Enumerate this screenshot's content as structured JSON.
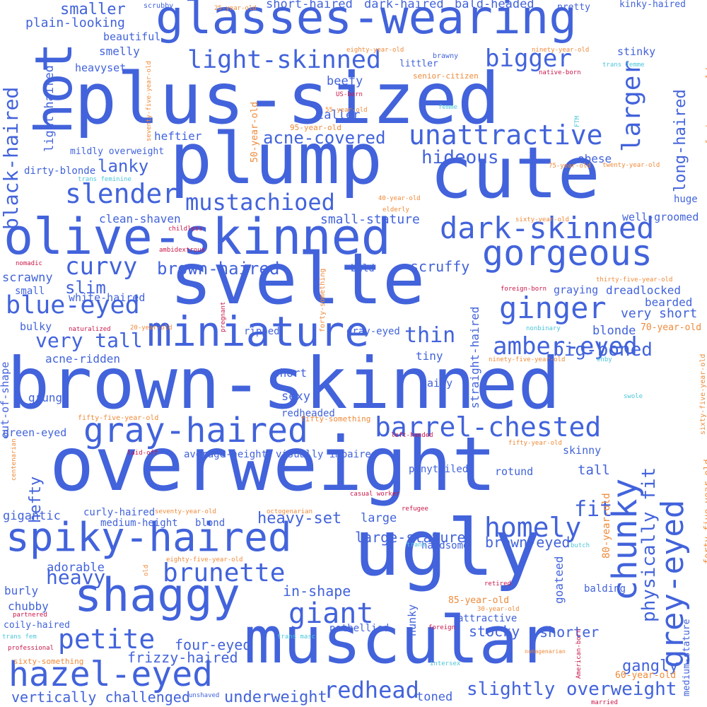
{
  "colors": {
    "blue": "#4263db",
    "orange": "#ef8a3a",
    "cyan": "#4cc6d8",
    "red": "#c9184a",
    "background": "#ffffff"
  },
  "words": [
    {
      "text": "brown-skinned",
      "color": "blue"
    },
    {
      "text": "overweight",
      "color": "blue"
    },
    {
      "text": "muscular",
      "color": "blue"
    },
    {
      "text": "plus-sized",
      "color": "blue"
    },
    {
      "text": "svelte",
      "color": "blue"
    },
    {
      "text": "plump",
      "color": "blue"
    },
    {
      "text": "ugly",
      "color": "blue"
    },
    {
      "text": "glasses-wearing",
      "color": "blue"
    },
    {
      "text": "cute",
      "color": "blue"
    },
    {
      "text": "olive-skinned",
      "color": "blue"
    },
    {
      "text": "hot",
      "color": "blue"
    },
    {
      "text": "spiky-haired",
      "color": "blue"
    },
    {
      "text": "shaggy",
      "color": "blue"
    },
    {
      "text": "miniature",
      "color": "blue"
    },
    {
      "text": "gray-haired",
      "color": "blue"
    },
    {
      "text": "hazel-eyed",
      "color": "blue"
    },
    {
      "text": "gorgeous",
      "color": "blue"
    },
    {
      "text": "dark-skinned",
      "color": "blue"
    },
    {
      "text": "chunky",
      "color": "blue"
    },
    {
      "text": "grey-eyed",
      "color": "blue"
    },
    {
      "text": "barrel-chested",
      "color": "blue"
    },
    {
      "text": "unattractive",
      "color": "blue"
    },
    {
      "text": "light-skinned",
      "color": "blue"
    },
    {
      "text": "ginger",
      "color": "blue"
    },
    {
      "text": "slender",
      "color": "blue"
    },
    {
      "text": "mustachioed",
      "color": "blue"
    },
    {
      "text": "homely",
      "color": "blue"
    },
    {
      "text": "brunette",
      "color": "blue"
    },
    {
      "text": "giant",
      "color": "blue"
    },
    {
      "text": "petite",
      "color": "blue"
    },
    {
      "text": "larger",
      "color": "blue"
    },
    {
      "text": "amber-eyed",
      "color": "blue"
    },
    {
      "text": "blue-eyed",
      "color": "blue"
    },
    {
      "text": "black-haired",
      "color": "blue"
    },
    {
      "text": "bigger",
      "color": "blue"
    },
    {
      "text": "curvy",
      "color": "blue"
    },
    {
      "text": "slightly overweight",
      "color": "blue"
    },
    {
      "text": "physically fit",
      "color": "blue"
    },
    {
      "text": "redhead",
      "color": "blue"
    },
    {
      "text": "fit",
      "color": "blue"
    },
    {
      "text": "brown-haired",
      "color": "blue"
    },
    {
      "text": "acne-covered",
      "color": "blue"
    },
    {
      "text": "hideous",
      "color": "blue"
    },
    {
      "text": "very tall",
      "color": "blue"
    },
    {
      "text": "big-boned",
      "color": "blue"
    },
    {
      "text": "long-haired",
      "color": "blue"
    },
    {
      "text": "lanky",
      "color": "blue"
    },
    {
      "text": "slim",
      "color": "blue"
    },
    {
      "text": "heavy",
      "color": "blue"
    },
    {
      "text": "hefty",
      "color": "blue"
    },
    {
      "text": "scruffy",
      "color": "blue"
    },
    {
      "text": "thin",
      "color": "blue"
    },
    {
      "text": "gangly",
      "color": "blue"
    },
    {
      "text": "heavy-set",
      "color": "blue"
    },
    {
      "text": "large-stature",
      "color": "blue"
    },
    {
      "text": "brown-eyed",
      "color": "blue"
    },
    {
      "text": "underweight",
      "color": "blue"
    },
    {
      "text": "vertically challenged",
      "color": "blue"
    },
    {
      "text": "frizzy-haired",
      "color": "blue"
    },
    {
      "text": "four-eyed",
      "color": "blue"
    },
    {
      "text": "stocky",
      "color": "blue"
    },
    {
      "text": "shorter",
      "color": "blue"
    },
    {
      "text": "in-shape",
      "color": "blue"
    },
    {
      "text": "smaller",
      "color": "blue"
    },
    {
      "text": "short-haired",
      "color": "blue"
    },
    {
      "text": "dark-haired",
      "color": "blue"
    },
    {
      "text": "bald-headed",
      "color": "blue"
    },
    {
      "text": "light-haired",
      "color": "blue"
    },
    {
      "text": "plain-looking",
      "color": "blue"
    },
    {
      "text": "beautiful",
      "color": "blue"
    },
    {
      "text": "smelly",
      "color": "blue"
    },
    {
      "text": "heavyset",
      "color": "blue"
    },
    {
      "text": "beefy",
      "color": "blue"
    },
    {
      "text": "taller",
      "color": "blue"
    },
    {
      "text": "heftier",
      "color": "blue"
    },
    {
      "text": "mildly overweight",
      "color": "blue"
    },
    {
      "text": "dirty-blonde",
      "color": "blue"
    },
    {
      "text": "obese",
      "color": "blue"
    },
    {
      "text": "stinky",
      "color": "blue"
    },
    {
      "text": "well-groomed",
      "color": "blue"
    },
    {
      "text": "huge",
      "color": "blue"
    },
    {
      "text": "clean-shaven",
      "color": "blue"
    },
    {
      "text": "small-stature",
      "color": "blue"
    },
    {
      "text": "bald",
      "color": "blue"
    },
    {
      "text": "graying",
      "color": "blue"
    },
    {
      "text": "dreadlocked",
      "color": "blue"
    },
    {
      "text": "bearded",
      "color": "blue"
    },
    {
      "text": "very short",
      "color": "blue"
    },
    {
      "text": "blonde",
      "color": "blue"
    },
    {
      "text": "scrawny",
      "color": "blue"
    },
    {
      "text": "small",
      "color": "blue"
    },
    {
      "text": "white-haired",
      "color": "blue"
    },
    {
      "text": "bulky",
      "color": "blue"
    },
    {
      "text": "ripped",
      "color": "blue"
    },
    {
      "text": "gray-eyed",
      "color": "blue"
    },
    {
      "text": "tiny",
      "color": "blue"
    },
    {
      "text": "acne-ridden",
      "color": "blue"
    },
    {
      "text": "short",
      "color": "blue"
    },
    {
      "text": "hairy",
      "color": "blue"
    },
    {
      "text": "sexy",
      "color": "blue"
    },
    {
      "text": "redheaded",
      "color": "blue"
    },
    {
      "text": "grungy",
      "color": "blue"
    },
    {
      "text": "green-eyed",
      "color": "blue"
    },
    {
      "text": "out-of-shape",
      "color": "blue"
    },
    {
      "text": "straight-haired",
      "color": "blue"
    },
    {
      "text": "average-height",
      "color": "blue"
    },
    {
      "text": "visually impaired",
      "color": "blue"
    },
    {
      "text": "ponytailed",
      "color": "blue"
    },
    {
      "text": "rotund",
      "color": "blue"
    },
    {
      "text": "skinny",
      "color": "blue"
    },
    {
      "text": "tall",
      "color": "blue"
    },
    {
      "text": "large",
      "color": "blue"
    },
    {
      "text": "gigantic",
      "color": "blue"
    },
    {
      "text": "curly-haired",
      "color": "blue"
    },
    {
      "text": "medium-height",
      "color": "blue"
    },
    {
      "text": "blond",
      "color": "blue"
    },
    {
      "text": "handsome",
      "color": "blue"
    },
    {
      "text": "adorable",
      "color": "blue"
    },
    {
      "text": "goateed",
      "color": "blue"
    },
    {
      "text": "balding",
      "color": "blue"
    },
    {
      "text": "burly",
      "color": "blue"
    },
    {
      "text": "chubby",
      "color": "blue"
    },
    {
      "text": "hunky",
      "color": "blue"
    },
    {
      "text": "attractive",
      "color": "blue"
    },
    {
      "text": "potbellied",
      "color": "blue"
    },
    {
      "text": "coily-haired",
      "color": "blue"
    },
    {
      "text": "toned",
      "color": "blue"
    },
    {
      "text": "medium-stature",
      "color": "blue"
    },
    {
      "text": "pretty",
      "color": "blue"
    },
    {
      "text": "kinky-haired",
      "color": "blue"
    },
    {
      "text": "brawny",
      "color": "blue"
    },
    {
      "text": "littler",
      "color": "blue"
    },
    {
      "text": "scrubby",
      "color": "blue"
    },
    {
      "text": "25-year-old",
      "color": "orange"
    },
    {
      "text": "eighty-year-old",
      "color": "orange"
    },
    {
      "text": "ninety-year-old",
      "color": "orange"
    },
    {
      "text": "senior-citizen",
      "color": "orange"
    },
    {
      "text": "55-year-old",
      "color": "orange"
    },
    {
      "text": "95-year-old",
      "color": "orange"
    },
    {
      "text": "50-year-old",
      "color": "orange"
    },
    {
      "text": "seventy-five-year-old",
      "color": "orange"
    },
    {
      "text": "forty-year-old",
      "color": "orange"
    },
    {
      "text": "75-year-old",
      "color": "orange"
    },
    {
      "text": "twenty-year-old",
      "color": "orange"
    },
    {
      "text": "40-year-old",
      "color": "orange"
    },
    {
      "text": "elderly",
      "color": "orange"
    },
    {
      "text": "sixty-year-old",
      "color": "orange"
    },
    {
      "text": "thirty-five-year-old",
      "color": "orange"
    },
    {
      "text": "20-year-old",
      "color": "orange"
    },
    {
      "text": "forty-something",
      "color": "orange"
    },
    {
      "text": "70-year-old",
      "color": "orange"
    },
    {
      "text": "ninety-five-year-old",
      "color": "orange"
    },
    {
      "text": "fifty-five-year-old",
      "color": "orange"
    },
    {
      "text": "fifty-something",
      "color": "orange"
    },
    {
      "text": "fifty-year-old",
      "color": "orange"
    },
    {
      "text": "sixty-five-year-old",
      "color": "orange"
    },
    {
      "text": "centenarian",
      "color": "orange"
    },
    {
      "text": "seventy-year-old",
      "color": "orange"
    },
    {
      "text": "octogenarian",
      "color": "orange"
    },
    {
      "text": "80-year-old",
      "color": "orange"
    },
    {
      "text": "eighty-five-year-old",
      "color": "orange"
    },
    {
      "text": "forty-five-year-old",
      "color": "orange"
    },
    {
      "text": "85-year-old",
      "color": "orange"
    },
    {
      "text": "30-year-old",
      "color": "orange"
    },
    {
      "text": "60-year-old",
      "color": "orange"
    },
    {
      "text": "sixty-something",
      "color": "orange"
    },
    {
      "text": "nonagenarian",
      "color": "orange"
    },
    {
      "text": "old",
      "color": "orange"
    },
    {
      "text": "US-born",
      "color": "red"
    },
    {
      "text": "native-born",
      "color": "red"
    },
    {
      "text": "childless",
      "color": "red"
    },
    {
      "text": "ambidextrous",
      "color": "red"
    },
    {
      "text": "nomadic",
      "color": "red"
    },
    {
      "text": "foreign-born",
      "color": "red"
    },
    {
      "text": "naturalized",
      "color": "red"
    },
    {
      "text": "pregnant",
      "color": "red"
    },
    {
      "text": "left-handed",
      "color": "red"
    },
    {
      "text": "laid-off",
      "color": "red"
    },
    {
      "text": "casual worker",
      "color": "red"
    },
    {
      "text": "refugee",
      "color": "red"
    },
    {
      "text": "retired",
      "color": "red"
    },
    {
      "text": "partnered",
      "color": "red"
    },
    {
      "text": "professional",
      "color": "red"
    },
    {
      "text": "foreign",
      "color": "red"
    },
    {
      "text": "American-born",
      "color": "red"
    },
    {
      "text": "married",
      "color": "red"
    },
    {
      "text": "trans femme",
      "color": "cyan"
    },
    {
      "text": "femme",
      "color": "cyan"
    },
    {
      "text": "FTM",
      "color": "cyan"
    },
    {
      "text": "trans feminine",
      "color": "cyan"
    },
    {
      "text": "nonbinary",
      "color": "cyan"
    },
    {
      "text": "enby",
      "color": "cyan"
    },
    {
      "text": "swole",
      "color": "cyan"
    },
    {
      "text": "trans",
      "color": "cyan"
    },
    {
      "text": "butch",
      "color": "cyan"
    },
    {
      "text": "trans fem",
      "color": "cyan"
    },
    {
      "text": "trans masc",
      "color": "cyan"
    },
    {
      "text": "intersex",
      "color": "cyan"
    },
    {
      "text": "unshaved",
      "color": "blue"
    }
  ]
}
